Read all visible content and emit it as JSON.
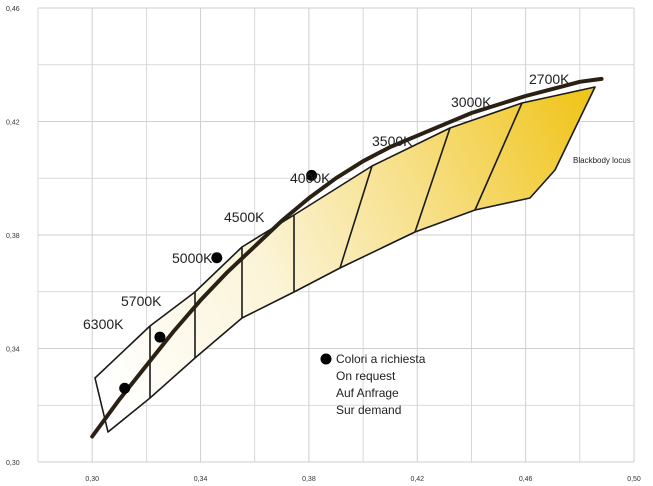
{
  "chart_data": {
    "type": "scatter",
    "x_ticks": [
      "0,30",
      "0,34",
      "0,38",
      "0,42",
      "0,46",
      "0,50"
    ],
    "y_ticks": [
      "0,30",
      "0,34",
      "0,38",
      "0,42",
      "0,46"
    ],
    "xlim": [
      0.28,
      0.5
    ],
    "ylim": [
      0.3,
      0.46
    ],
    "grid": true,
    "blackbody_locus": {
      "label": "Blackbody locus",
      "points": [
        [
          0.3,
          0.309
        ],
        [
          0.31,
          0.322
        ],
        [
          0.32,
          0.334
        ],
        [
          0.33,
          0.346
        ],
        [
          0.34,
          0.357
        ],
        [
          0.35,
          0.367
        ],
        [
          0.36,
          0.376
        ],
        [
          0.37,
          0.385
        ],
        [
          0.38,
          0.393
        ],
        [
          0.39,
          0.4
        ],
        [
          0.4,
          0.406
        ],
        [
          0.41,
          0.411
        ],
        [
          0.42,
          0.415
        ],
        [
          0.43,
          0.419
        ],
        [
          0.44,
          0.423
        ],
        [
          0.45,
          0.426
        ],
        [
          0.46,
          0.429
        ],
        [
          0.47,
          0.4315
        ],
        [
          0.48,
          0.434
        ],
        [
          0.488,
          0.435
        ]
      ]
    },
    "cct_regions": [
      {
        "label": "6300K"
      },
      {
        "label": "5700K"
      },
      {
        "label": "5000K"
      },
      {
        "label": "4500K"
      },
      {
        "label": "4000K"
      },
      {
        "label": "3500K"
      },
      {
        "label": "3000K"
      },
      {
        "label": "2700K"
      }
    ],
    "special_points": [
      {
        "x": 0.312,
        "y": 0.326
      },
      {
        "x": 0.325,
        "y": 0.344
      },
      {
        "x": 0.346,
        "y": 0.372
      },
      {
        "x": 0.381,
        "y": 0.401
      }
    ],
    "legend": {
      "lines": [
        "Colori a richiesta",
        "On request",
        "Auf Anfrage",
        "Sur demand"
      ]
    },
    "colors": {
      "band_light": "#fbf4d8",
      "band_dark": "#f0c51c",
      "locus": "#2b2014",
      "grid": "#cfcfcf"
    }
  }
}
